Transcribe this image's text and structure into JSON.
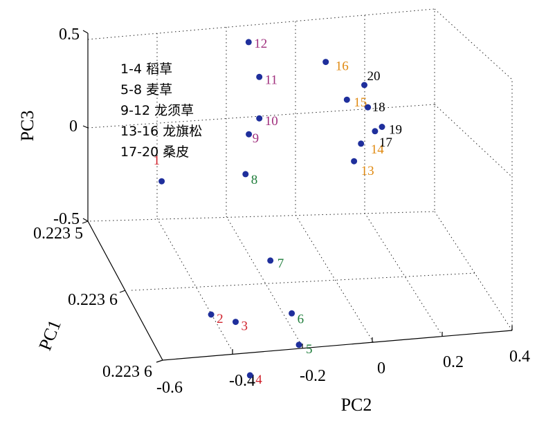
{
  "chart_data": {
    "type": "scatter",
    "title": "",
    "xlabel": "PC2",
    "ylabel": "PC1",
    "zlabel": "PC3",
    "xlim": [
      -0.6,
      0.4
    ],
    "zlim": [
      -0.5,
      0.5
    ],
    "x_ticks": [
      "-0.6",
      "-0.4",
      "-0.2",
      "0",
      "0.2",
      "0.4"
    ],
    "y_ticks": [
      "0.223 5",
      "0.223 6",
      "0.223 6"
    ],
    "z_ticks": [
      "0.5",
      "0",
      "-0.5"
    ],
    "grid": true,
    "marker_color": "#1f2f9c",
    "legend_lines": [
      "1-4 稻草",
      "5-8 麦草",
      "9-12 龙须草",
      "13-16 龙旗松",
      "17-20 桑皮"
    ],
    "groups": [
      {
        "range": "1-4",
        "color": "#d0212b"
      },
      {
        "range": "5-8",
        "color": "#1e7d3a"
      },
      {
        "range": "9-12",
        "color": "#a0307e"
      },
      {
        "range": "13-16",
        "color": "#e08a12"
      },
      {
        "range": "17-20",
        "color": "#000000"
      }
    ],
    "points": [
      {
        "label": "1",
        "group": 0,
        "x": -0.45,
        "y": 0.22355,
        "z": -0.1
      },
      {
        "label": "2",
        "group": 0,
        "x": -0.4,
        "y": 0.22358,
        "z": -0.5
      },
      {
        "label": "3",
        "group": 0,
        "x": -0.33,
        "y": 0.22358,
        "z": -0.55
      },
      {
        "label": "4",
        "group": 0,
        "x": -0.35,
        "y": 0.2236,
        "z": -0.62
      },
      {
        "label": "5",
        "group": 1,
        "x": -0.21,
        "y": 0.2236,
        "z": -0.48
      },
      {
        "label": "6",
        "group": 1,
        "x": -0.2,
        "y": 0.22359,
        "z": -0.42
      },
      {
        "label": "7",
        "group": 1,
        "x": -0.2,
        "y": 0.22357,
        "z": -0.35
      },
      {
        "label": "8",
        "group": 1,
        "x": -0.21,
        "y": 0.22355,
        "z": -0.1
      },
      {
        "label": "9",
        "group": 2,
        "x": -0.17,
        "y": 0.22354,
        "z": 0.0
      },
      {
        "label": "10",
        "group": 2,
        "x": -0.14,
        "y": 0.22354,
        "z": 0.08
      },
      {
        "label": "11",
        "group": 2,
        "x": -0.14,
        "y": 0.22354,
        "z": 0.3
      },
      {
        "label": "12",
        "group": 2,
        "x": -0.14,
        "y": 0.22353,
        "z": 0.38
      },
      {
        "label": "13",
        "group": 3,
        "x": 0.07,
        "y": 0.22356,
        "z": 0.03
      },
      {
        "label": "14",
        "group": 3,
        "x": 0.09,
        "y": 0.22356,
        "z": 0.12
      },
      {
        "label": "15",
        "group": 3,
        "x": 0.08,
        "y": 0.22355,
        "z": 0.25
      },
      {
        "label": "16",
        "group": 3,
        "x": 0.05,
        "y": 0.22354,
        "z": 0.35
      },
      {
        "label": "17",
        "group": 4,
        "x": 0.13,
        "y": 0.22356,
        "z": 0.18
      },
      {
        "label": "18",
        "group": 4,
        "x": 0.14,
        "y": 0.22355,
        "z": 0.2
      },
      {
        "label": "19",
        "group": 4,
        "x": 0.15,
        "y": 0.22356,
        "z": 0.2
      },
      {
        "label": "20",
        "group": 4,
        "x": 0.13,
        "y": 0.22355,
        "z": 0.32
      }
    ]
  }
}
